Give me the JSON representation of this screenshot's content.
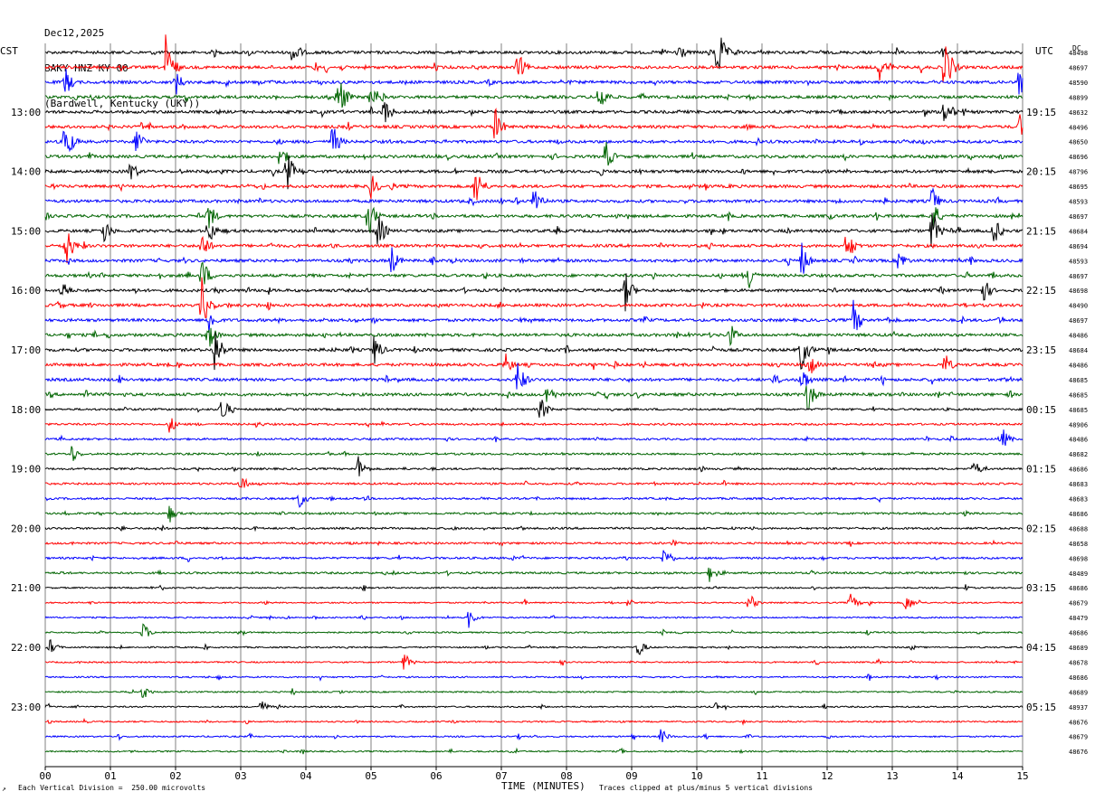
{
  "header": {
    "date": "Dec12,2025",
    "station": "BAKY HNZ KY 00",
    "location": "(Bardwell, Kentucky (UKY))"
  },
  "left_tz": "CST",
  "right_tz": "UTC",
  "dc_label": "DC",
  "footer": {
    "scale_note": "Each Vertical Division =  250.00 microvolts",
    "xlabel": "TIME (MINUTES)",
    "clip_note": "Traces clipped at plus/minus 5 vertical divisions"
  },
  "colors": {
    "black": "#000000",
    "red": "#ff0000",
    "blue": "#0000ff",
    "green": "#006400",
    "grid": "#808080"
  },
  "chart_data": {
    "type": "line",
    "title": "BAKY HNZ KY 00",
    "xlabel": "TIME (MINUTES)",
    "xlim": [
      0,
      15
    ],
    "x_ticks": [
      "00",
      "01",
      "02",
      "03",
      "04",
      "05",
      "06",
      "07",
      "08",
      "09",
      "10",
      "11",
      "12",
      "13",
      "14",
      "15"
    ],
    "trace_interval_minutes": 15,
    "trace_colors": [
      "black",
      "red",
      "blue",
      "green"
    ],
    "num_traces": 48,
    "left_time_labels": [
      {
        "trace": 4,
        "label": "13:00"
      },
      {
        "trace": 8,
        "label": "14:00"
      },
      {
        "trace": 12,
        "label": "15:00"
      },
      {
        "trace": 16,
        "label": "16:00"
      },
      {
        "trace": 20,
        "label": "17:00"
      },
      {
        "trace": 24,
        "label": "18:00"
      },
      {
        "trace": 28,
        "label": "19:00"
      },
      {
        "trace": 32,
        "label": "20:00"
      },
      {
        "trace": 36,
        "label": "21:00"
      },
      {
        "trace": 40,
        "label": "22:00"
      },
      {
        "trace": 44,
        "label": "23:00"
      }
    ],
    "right_time_labels": [
      {
        "trace": 4,
        "label": "19:15"
      },
      {
        "trace": 8,
        "label": "20:15"
      },
      {
        "trace": 12,
        "label": "21:15"
      },
      {
        "trace": 16,
        "label": "22:15"
      },
      {
        "trace": 20,
        "label": "23:15"
      },
      {
        "trace": 24,
        "label": "00:15"
      },
      {
        "trace": 28,
        "label": "01:15"
      },
      {
        "trace": 32,
        "label": "02:15"
      },
      {
        "trace": 36,
        "label": "03:15"
      },
      {
        "trace": 40,
        "label": "04:15"
      },
      {
        "trace": 44,
        "label": "05:15"
      }
    ],
    "dc_offsets": [
      "48498",
      "48697",
      "48590",
      "48899",
      "48632",
      "48496",
      "48650",
      "48696",
      "48796",
      "48695",
      "48593",
      "48697",
      "48684",
      "48694",
      "48593",
      "48697",
      "48698",
      "48490",
      "48697",
      "48486",
      "48684",
      "48486",
      "48685",
      "48685",
      "48685",
      "48906",
      "48486",
      "48682",
      "48686",
      "48683",
      "48683",
      "48686",
      "48688",
      "48658",
      "48698",
      "48489",
      "48686",
      "48679",
      "48479",
      "48686",
      "48689",
      "48678",
      "48686",
      "48689",
      "48937",
      "48676",
      "48679",
      "48676"
    ],
    "events": [
      {
        "trace": 0,
        "minute": 10.3,
        "amp": 5
      },
      {
        "trace": 0,
        "minute": 3.8,
        "amp": 2.5
      },
      {
        "trace": 0,
        "minute": 9.7,
        "amp": 2
      },
      {
        "trace": 1,
        "minute": 1.85,
        "amp": 5
      },
      {
        "trace": 1,
        "minute": 7.25,
        "amp": 2.5
      },
      {
        "trace": 1,
        "minute": 13.8,
        "amp": 5
      },
      {
        "trace": 1,
        "minute": 12.8,
        "amp": 2
      },
      {
        "trace": 2,
        "minute": 0.3,
        "amp": 2.5
      },
      {
        "trace": 2,
        "minute": 2.0,
        "amp": 2
      },
      {
        "trace": 2,
        "minute": 14.95,
        "amp": 3
      },
      {
        "trace": 3,
        "minute": 4.5,
        "amp": 4
      },
      {
        "trace": 3,
        "minute": 8.5,
        "amp": 3
      },
      {
        "trace": 3,
        "minute": 5.0,
        "amp": 2.5
      },
      {
        "trace": 4,
        "minute": 5.2,
        "amp": 2.5
      },
      {
        "trace": 4,
        "minute": 13.8,
        "amp": 3
      },
      {
        "trace": 5,
        "minute": 6.9,
        "amp": 3
      },
      {
        "trace": 5,
        "minute": 14.95,
        "amp": 2
      },
      {
        "trace": 6,
        "minute": 0.3,
        "amp": 4
      },
      {
        "trace": 6,
        "minute": 4.4,
        "amp": 3
      },
      {
        "trace": 6,
        "minute": 1.4,
        "amp": 2.5
      },
      {
        "trace": 7,
        "minute": 8.6,
        "amp": 2.5
      },
      {
        "trace": 7,
        "minute": 3.6,
        "amp": 2
      },
      {
        "trace": 8,
        "minute": 3.7,
        "amp": 3.5
      },
      {
        "trace": 8,
        "minute": 1.3,
        "amp": 2
      },
      {
        "trace": 9,
        "minute": 6.6,
        "amp": 3.5
      },
      {
        "trace": 9,
        "minute": 5.0,
        "amp": 2
      },
      {
        "trace": 10,
        "minute": 7.5,
        "amp": 3
      },
      {
        "trace": 10,
        "minute": 13.6,
        "amp": 2.5
      },
      {
        "trace": 11,
        "minute": 4.95,
        "amp": 3.5
      },
      {
        "trace": 11,
        "minute": 2.5,
        "amp": 2.5
      },
      {
        "trace": 11,
        "minute": 13.6,
        "amp": 3
      },
      {
        "trace": 12,
        "minute": 5.1,
        "amp": 3
      },
      {
        "trace": 12,
        "minute": 2.5,
        "amp": 2.5
      },
      {
        "trace": 12,
        "minute": 13.6,
        "amp": 3.5
      },
      {
        "trace": 12,
        "minute": 14.55,
        "amp": 2.5
      },
      {
        "trace": 12,
        "minute": 0.9,
        "amp": 2
      },
      {
        "trace": 13,
        "minute": 0.3,
        "amp": 4
      },
      {
        "trace": 13,
        "minute": 2.4,
        "amp": 2.5
      },
      {
        "trace": 13,
        "minute": 12.3,
        "amp": 3
      },
      {
        "trace": 14,
        "minute": 5.3,
        "amp": 2.5
      },
      {
        "trace": 14,
        "minute": 11.6,
        "amp": 3
      },
      {
        "trace": 14,
        "minute": 13.1,
        "amp": 2
      },
      {
        "trace": 15,
        "minute": 2.4,
        "amp": 3
      },
      {
        "trace": 15,
        "minute": 10.8,
        "amp": 2.5
      },
      {
        "trace": 16,
        "minute": 8.9,
        "amp": 3
      },
      {
        "trace": 16,
        "minute": 0.25,
        "amp": 2
      },
      {
        "trace": 16,
        "minute": 14.4,
        "amp": 2
      },
      {
        "trace": 17,
        "minute": 2.4,
        "amp": 4
      },
      {
        "trace": 18,
        "minute": 2.5,
        "amp": 2.5
      },
      {
        "trace": 18,
        "minute": 12.4,
        "amp": 3
      },
      {
        "trace": 19,
        "minute": 2.5,
        "amp": 2.5
      },
      {
        "trace": 19,
        "minute": 10.5,
        "amp": 2
      },
      {
        "trace": 20,
        "minute": 2.6,
        "amp": 4
      },
      {
        "trace": 20,
        "minute": 11.6,
        "amp": 3.5
      },
      {
        "trace": 20,
        "minute": 5.05,
        "amp": 2.5
      },
      {
        "trace": 21,
        "minute": 7.05,
        "amp": 2
      },
      {
        "trace": 21,
        "minute": 11.7,
        "amp": 2.5
      },
      {
        "trace": 21,
        "minute": 13.8,
        "amp": 2
      },
      {
        "trace": 22,
        "minute": 7.25,
        "amp": 3
      },
      {
        "trace": 22,
        "minute": 11.6,
        "amp": 2.5
      },
      {
        "trace": 23,
        "minute": 11.7,
        "amp": 3
      },
      {
        "trace": 23,
        "minute": 7.7,
        "amp": 2
      },
      {
        "trace": 24,
        "minute": 2.7,
        "amp": 2.5
      },
      {
        "trace": 24,
        "minute": 7.6,
        "amp": 2
      },
      {
        "trace": 25,
        "minute": 1.9,
        "amp": 1.5
      },
      {
        "trace": 26,
        "minute": 14.7,
        "amp": 1.5
      },
      {
        "trace": 27,
        "minute": 0.4,
        "amp": 1.5
      },
      {
        "trace": 28,
        "minute": 4.8,
        "amp": 2
      },
      {
        "trace": 28,
        "minute": 14.25,
        "amp": 1.5
      },
      {
        "trace": 29,
        "minute": 3.0,
        "amp": 1.5
      },
      {
        "trace": 30,
        "minute": 3.9,
        "amp": 1.5
      },
      {
        "trace": 31,
        "minute": 1.9,
        "amp": 1.5
      },
      {
        "trace": 34,
        "minute": 9.5,
        "amp": 2
      },
      {
        "trace": 35,
        "minute": 10.2,
        "amp": 1.5
      },
      {
        "trace": 37,
        "minute": 10.8,
        "amp": 1.5
      },
      {
        "trace": 37,
        "minute": 12.35,
        "amp": 1.5
      },
      {
        "trace": 37,
        "minute": 13.2,
        "amp": 1.5
      },
      {
        "trace": 38,
        "minute": 6.5,
        "amp": 1.5
      },
      {
        "trace": 39,
        "minute": 1.5,
        "amp": 1.5
      },
      {
        "trace": 40,
        "minute": 0.05,
        "amp": 1.5
      },
      {
        "trace": 40,
        "minute": 9.1,
        "amp": 1.5
      },
      {
        "trace": 41,
        "minute": 5.5,
        "amp": 1.5
      },
      {
        "trace": 43,
        "minute": 1.5,
        "amp": 1.2
      },
      {
        "trace": 44,
        "minute": 3.3,
        "amp": 1.2
      },
      {
        "trace": 46,
        "minute": 9.45,
        "amp": 1.2
      }
    ]
  }
}
